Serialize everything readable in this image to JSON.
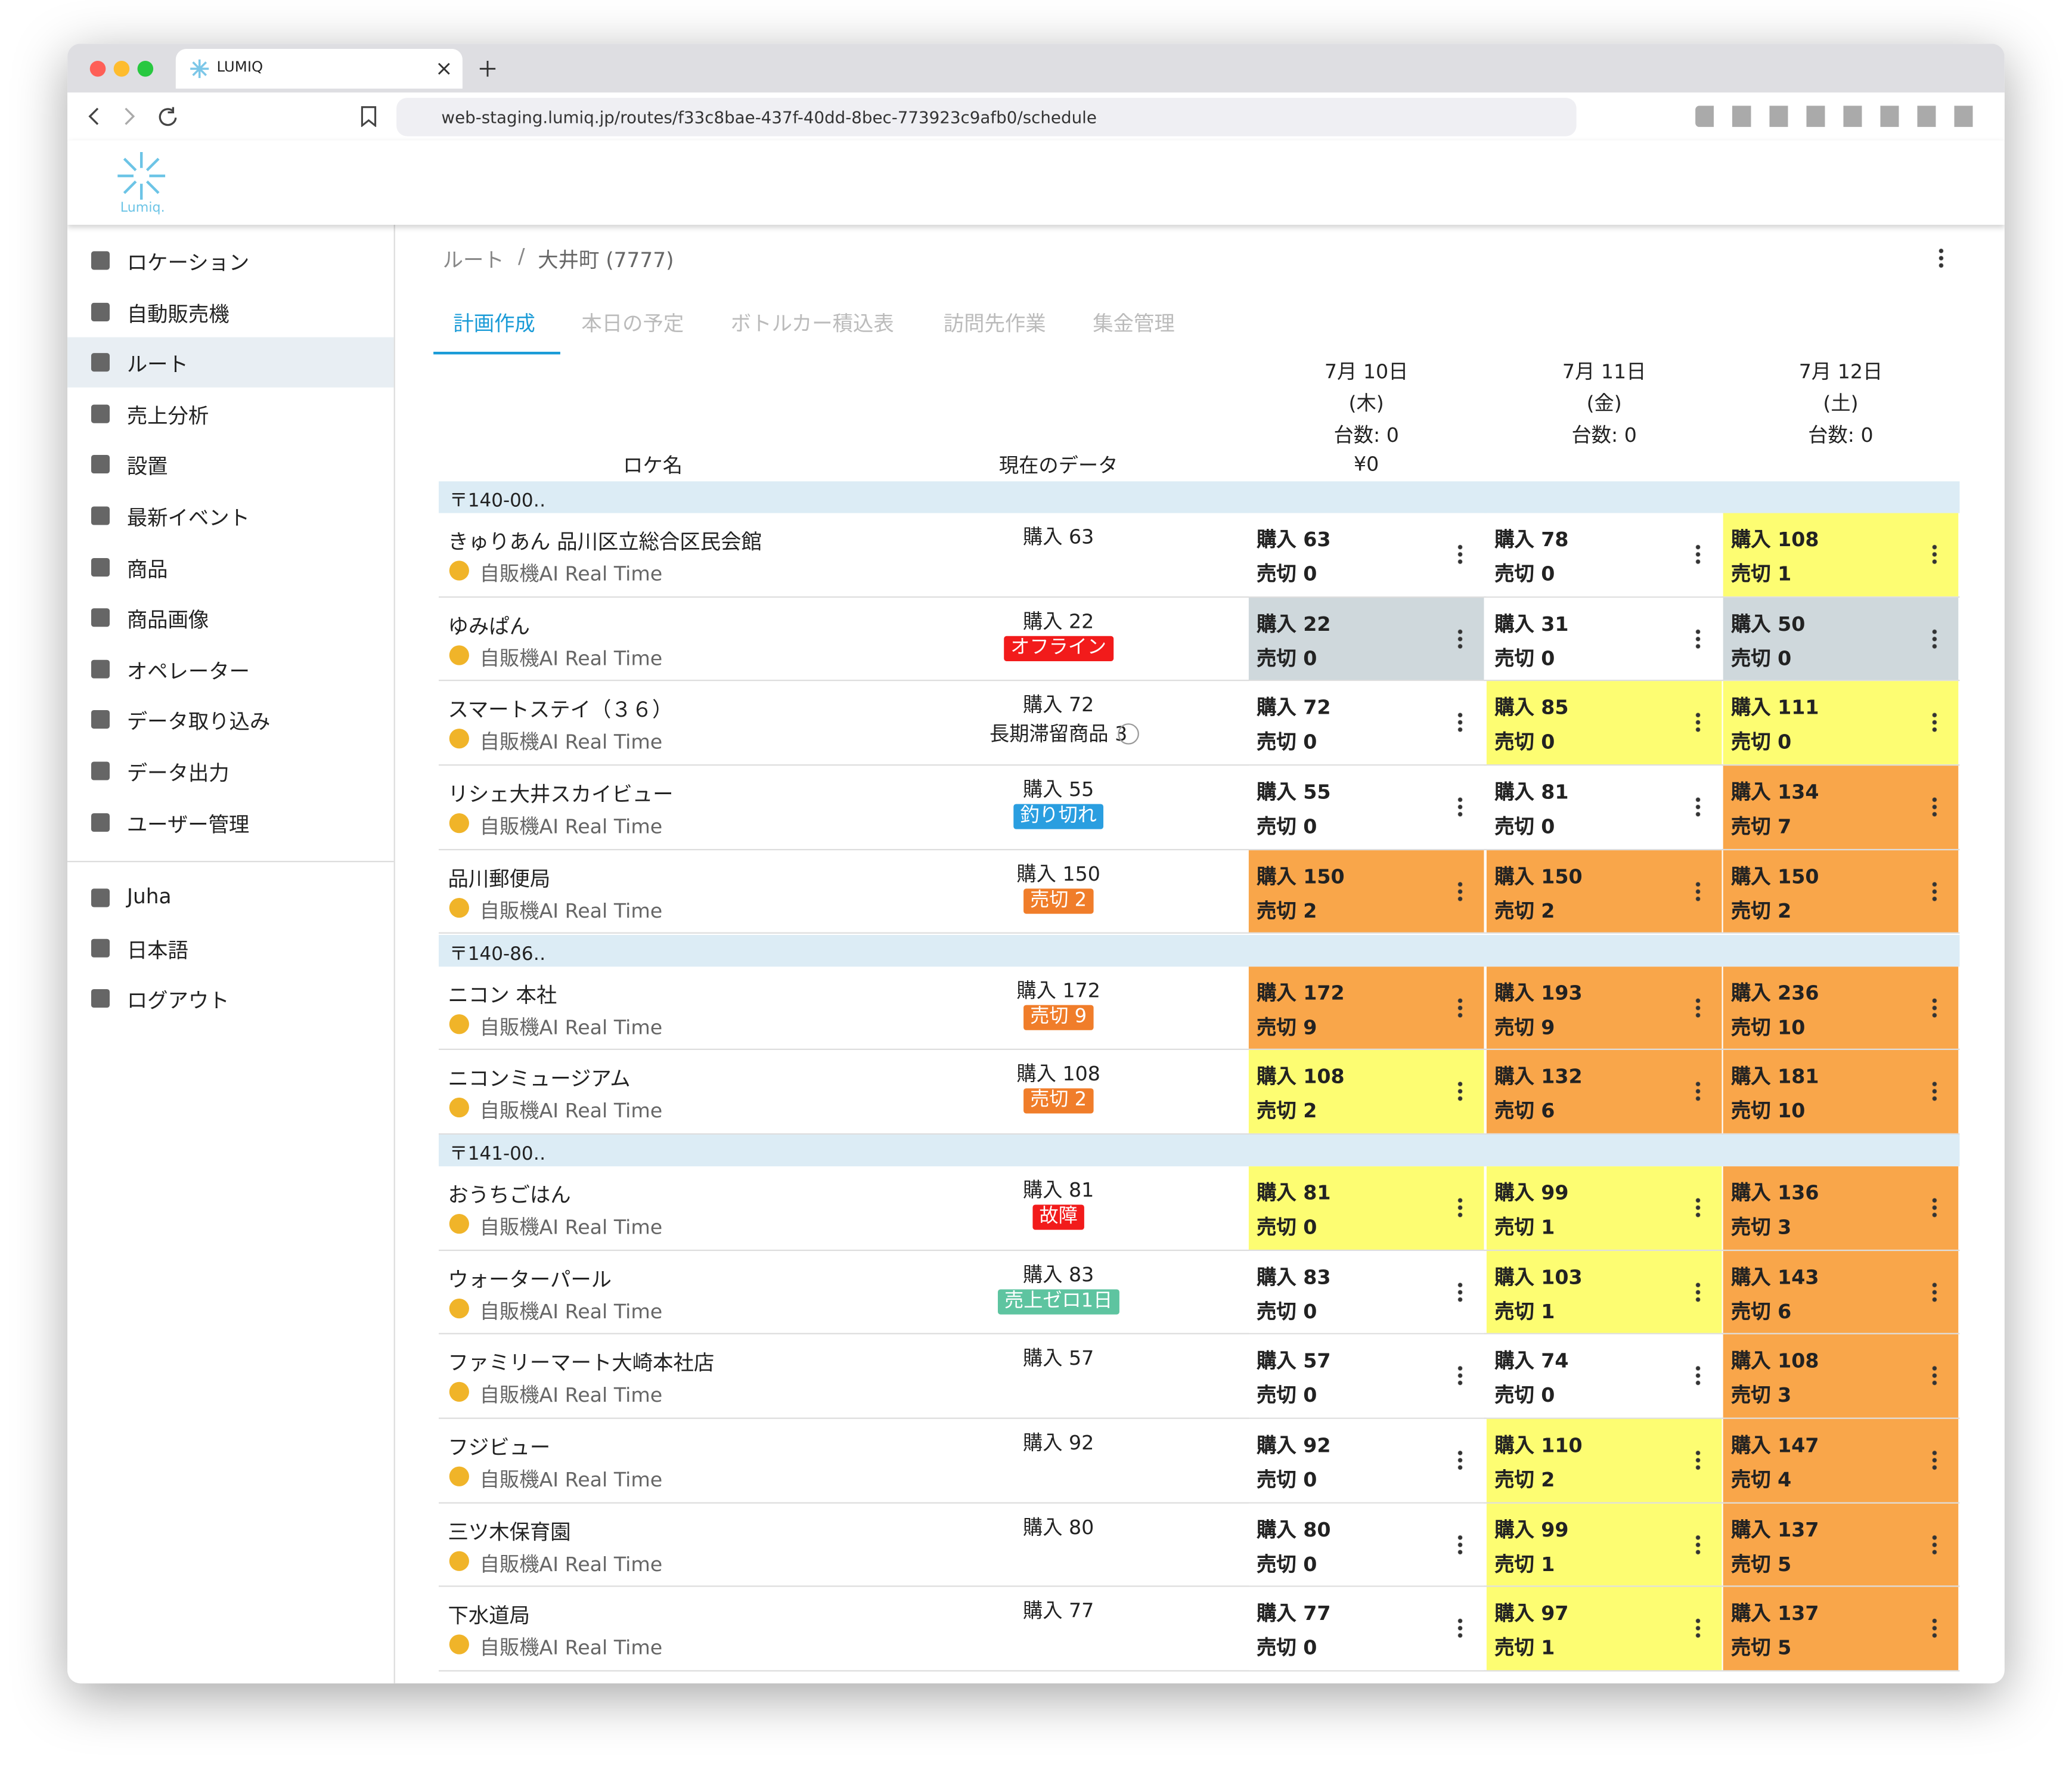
{
  "browser": {
    "tab_title": "LUMIQ",
    "url": "web-staging.lumiq.jp/routes/f33c8bae-437f-40dd-8bec-773923c9afb0/schedule"
  },
  "header": {
    "logo": "Lumiq."
  },
  "sidebar": {
    "items": [
      "ロケーション",
      "自動販売機",
      "ルート",
      "売上分析",
      "設置",
      "最新イベント",
      "商品",
      "商品画像",
      "オペレーター",
      "データ取り込み",
      "データ出力",
      "ユーザー管理"
    ],
    "active": 2,
    "user_items": [
      "Juha",
      "日本語",
      "ログアウト"
    ]
  },
  "breadcrumb": {
    "parent": "ルート",
    "separator": "/",
    "current": "大井町 (7777)"
  },
  "tabs": {
    "items": [
      "計画作成",
      "本日の予定",
      "ボトルカー積込表",
      "訪問先作業",
      "集金管理"
    ],
    "active": 0
  },
  "table": {
    "columns": {
      "name": "ロケ名",
      "current": "現在のデータ"
    },
    "days": [
      {
        "date": "7月 10日",
        "weekday": "(木)",
        "count": "台数: 0",
        "amount": "¥0"
      },
      {
        "date": "7月 11日",
        "weekday": "(金)",
        "count": "台数: 0"
      },
      {
        "date": "7月 12日",
        "weekday": "(土)",
        "count": "台数: 0"
      }
    ],
    "groups": [
      {
        "name": "〒140-00‥",
        "rows": [
          {
            "name": "きゅりあん 品川区立総合区民会館",
            "status": "自販機AI Real Time",
            "current": "購入 63",
            "cells": [
              {
                "buy": "購入 63",
                "sold": "売切 0",
                "color": "#ffffff"
              },
              {
                "buy": "購入 78",
                "sold": "売切 0",
                "color": "#ffffff"
              },
              {
                "buy": "購入 108",
                "sold": "売切 1",
                "color": "#fdfd72"
              }
            ]
          },
          {
            "name": "ゆみぱん",
            "status": "自販機AI Real Time",
            "current": "購入 22",
            "badge": {
              "text": "オフライン",
              "color": "#f21b1b"
            },
            "cells": [
              {
                "buy": "購入 22",
                "sold": "売切 0",
                "color": "#cfd8dc"
              },
              {
                "buy": "購入 31",
                "sold": "売切 0",
                "color": "#ffffff"
              },
              {
                "buy": "購入 50",
                "sold": "売切 0",
                "color": "#cfd8dc"
              }
            ]
          },
          {
            "name": "スマートステイ（３６）",
            "status": "自販機AI Real Time",
            "current": "購入 72",
            "note": "長期滞留商品 3",
            "cells": [
              {
                "buy": "購入 72",
                "sold": "売切 0",
                "color": "#ffffff"
              },
              {
                "buy": "購入 85",
                "sold": "売切 0",
                "color": "#fdfd72"
              },
              {
                "buy": "購入 111",
                "sold": "売切 0",
                "color": "#fdfd72"
              }
            ]
          },
          {
            "name": "リシェ大井スカイビュー",
            "status": "自販機AI Real Time",
            "current": "購入 55",
            "badge": {
              "text": "釣り切れ",
              "color": "#2a9ee0"
            },
            "cells": [
              {
                "buy": "購入 55",
                "sold": "売切 0",
                "color": "#ffffff"
              },
              {
                "buy": "購入 81",
                "sold": "売切 0",
                "color": "#ffffff"
              },
              {
                "buy": "購入 134",
                "sold": "売切 7",
                "color": "#f9a64a"
              }
            ]
          },
          {
            "name": "品川郵便局",
            "status": "自販機AI Real Time",
            "current": "購入 150",
            "badge": {
              "text": "売切 2",
              "color": "#f07d2a"
            },
            "cells": [
              {
                "buy": "購入 150",
                "sold": "売切 2",
                "color": "#f9a64a"
              },
              {
                "buy": "購入 150",
                "sold": "売切 2",
                "color": "#f9a64a"
              },
              {
                "buy": "購入 150",
                "sold": "売切 2",
                "color": "#f9a64a"
              }
            ]
          }
        ]
      },
      {
        "name": "〒140-86‥",
        "rows": [
          {
            "name": "ニコン 本社",
            "status": "自販機AI Real Time",
            "current": "購入 172",
            "badge": {
              "text": "売切 9",
              "color": "#f07d2a"
            },
            "cells": [
              {
                "buy": "購入 172",
                "sold": "売切 9",
                "color": "#f9a64a"
              },
              {
                "buy": "購入 193",
                "sold": "売切 9",
                "color": "#f9a64a"
              },
              {
                "buy": "購入 236",
                "sold": "売切 10",
                "color": "#f9a64a"
              }
            ]
          },
          {
            "name": "ニコンミュージアム",
            "status": "自販機AI Real Time",
            "current": "購入 108",
            "badge": {
              "text": "売切 2",
              "color": "#f07d2a"
            },
            "cells": [
              {
                "buy": "購入 108",
                "sold": "売切 2",
                "color": "#fdfd72"
              },
              {
                "buy": "購入 132",
                "sold": "売切 6",
                "color": "#f9a64a"
              },
              {
                "buy": "購入 181",
                "sold": "売切 10",
                "color": "#f9a64a"
              }
            ]
          }
        ]
      },
      {
        "name": "〒141-00‥",
        "rows": [
          {
            "name": "おうちごはん",
            "status": "自販機AI Real Time",
            "current": "購入 81",
            "badge": {
              "text": "故障",
              "color": "#f21b1b"
            },
            "cells": [
              {
                "buy": "購入 81",
                "sold": "売切 0",
                "color": "#fdfd72"
              },
              {
                "buy": "購入 99",
                "sold": "売切 1",
                "color": "#fdfd72"
              },
              {
                "buy": "購入 136",
                "sold": "売切 3",
                "color": "#f9a64a"
              }
            ]
          },
          {
            "name": "ウォーターパール",
            "status": "自販機AI Real Time",
            "current": "購入 83",
            "badge": {
              "text": "売上ゼロ1日",
              "color": "#5ec4a0"
            },
            "cells": [
              {
                "buy": "購入 83",
                "sold": "売切 0",
                "color": "#ffffff"
              },
              {
                "buy": "購入 103",
                "sold": "売切 1",
                "color": "#fdfd72"
              },
              {
                "buy": "購入 143",
                "sold": "売切 6",
                "color": "#f9a64a"
              }
            ]
          },
          {
            "name": "ファミリーマート大崎本社店",
            "status": "自販機AI Real Time",
            "current": "購入 57",
            "cells": [
              {
                "buy": "購入 57",
                "sold": "売切 0",
                "color": "#ffffff"
              },
              {
                "buy": "購入 74",
                "sold": "売切 0",
                "color": "#ffffff"
              },
              {
                "buy": "購入 108",
                "sold": "売切 3",
                "color": "#f9a64a"
              }
            ]
          },
          {
            "name": "フジビュー",
            "status": "自販機AI Real Time",
            "current": "購入 92",
            "cells": [
              {
                "buy": "購入 92",
                "sold": "売切 0",
                "color": "#ffffff"
              },
              {
                "buy": "購入 110",
                "sold": "売切 2",
                "color": "#fdfd72"
              },
              {
                "buy": "購入 147",
                "sold": "売切 4",
                "color": "#f9a64a"
              }
            ]
          },
          {
            "name": "三ツ木保育園",
            "status": "自販機AI Real Time",
            "current": "購入 80",
            "cells": [
              {
                "buy": "購入 80",
                "sold": "売切 0",
                "color": "#ffffff"
              },
              {
                "buy": "購入 99",
                "sold": "売切 1",
                "color": "#fdfd72"
              },
              {
                "buy": "購入 137",
                "sold": "売切 5",
                "color": "#f9a64a"
              }
            ]
          },
          {
            "name": "下水道局",
            "status": "自販機AI Real Time",
            "current": "購入 77",
            "cells": [
              {
                "buy": "購入 77",
                "sold": "売切 0",
                "color": "#ffffff"
              },
              {
                "buy": "購入 97",
                "sold": "売切 1",
                "color": "#fdfd72"
              },
              {
                "buy": "購入 137",
                "sold": "売切 5",
                "color": "#f9a64a"
              }
            ]
          }
        ]
      }
    ]
  }
}
